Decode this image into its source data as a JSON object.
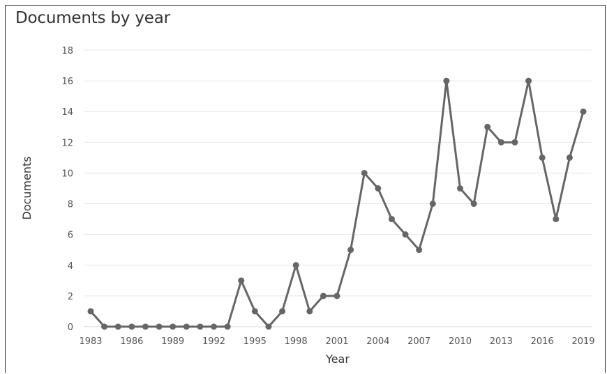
{
  "chart_data": {
    "type": "line",
    "title": "Documents by year",
    "xlabel": "Year",
    "ylabel": "Documents",
    "ylim": [
      0,
      18
    ],
    "yticks": [
      0,
      2,
      4,
      6,
      8,
      10,
      12,
      14,
      16,
      18
    ],
    "xlim": [
      1983,
      2019
    ],
    "xticks": [
      1983,
      1986,
      1989,
      1992,
      1995,
      1998,
      2001,
      2004,
      2007,
      2010,
      2013,
      2016,
      2019
    ],
    "grid": true,
    "legend": "none",
    "line_color": "#666666",
    "x": [
      1983,
      1984,
      1985,
      1986,
      1987,
      1988,
      1989,
      1990,
      1991,
      1992,
      1993,
      1994,
      1995,
      1996,
      1997,
      1998,
      1999,
      2000,
      2001,
      2002,
      2003,
      2004,
      2005,
      2006,
      2007,
      2008,
      2009,
      2010,
      2011,
      2012,
      2013,
      2014,
      2015,
      2016,
      2017,
      2018,
      2019
    ],
    "values": [
      1,
      0,
      0,
      0,
      0,
      0,
      0,
      0,
      0,
      0,
      0,
      3,
      1,
      0,
      1,
      4,
      1,
      2,
      2,
      5,
      10,
      9,
      7,
      6,
      5,
      8,
      16,
      9,
      8,
      13,
      12,
      12,
      16,
      11,
      7,
      11,
      14
    ]
  }
}
